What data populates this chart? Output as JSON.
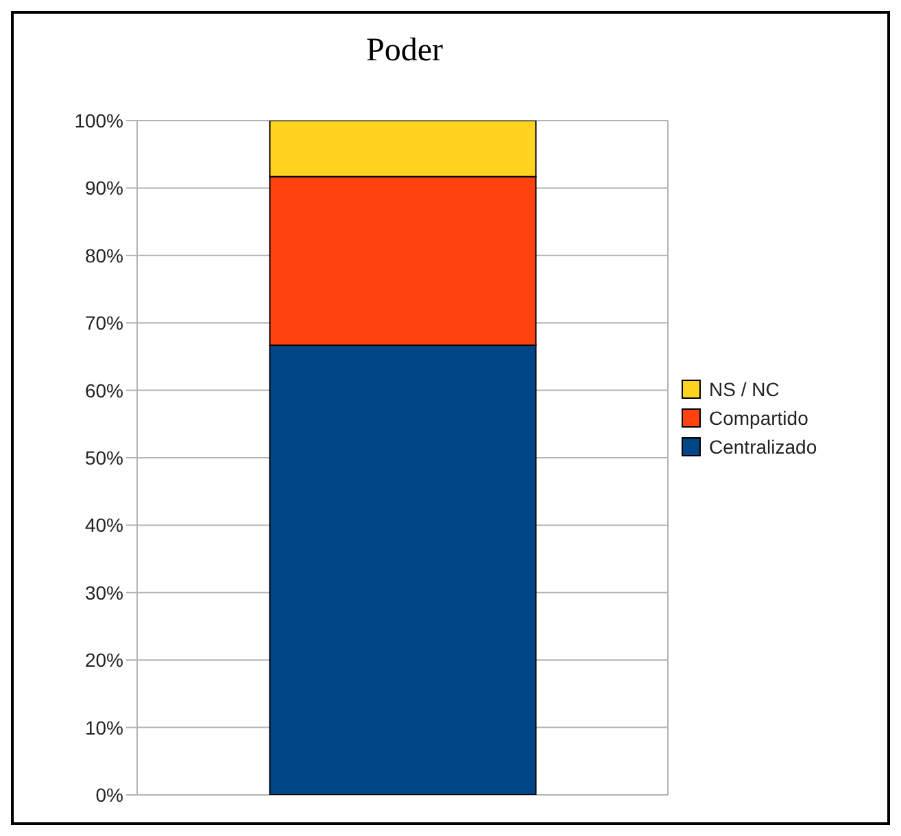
{
  "chart_data": {
    "type": "bar",
    "title": "Poder",
    "stacked": true,
    "categories": [
      null
    ],
    "series": [
      {
        "name": "Centralizado",
        "color": "#004586",
        "values": [
          66.7
        ]
      },
      {
        "name": "Compartido",
        "color": "#ff420e",
        "values": [
          25
        ]
      },
      {
        "name": "NS / NC",
        "color": "#ffd320",
        "values": [
          8.3
        ]
      }
    ],
    "ylim": [
      0,
      100
    ],
    "yticks": [
      {
        "value": 0,
        "label": "0%"
      },
      {
        "value": 10,
        "label": "10%"
      },
      {
        "value": 20,
        "label": "20%"
      },
      {
        "value": 30,
        "label": "30%"
      },
      {
        "value": 40,
        "label": "40%"
      },
      {
        "value": 50,
        "label": "50%"
      },
      {
        "value": 60,
        "label": "60%"
      },
      {
        "value": 70,
        "label": "70%"
      },
      {
        "value": 80,
        "label": "80%"
      },
      {
        "value": 90,
        "label": "90%"
      },
      {
        "value": 100,
        "label": "100%"
      }
    ],
    "grid": true,
    "legend": "right"
  }
}
